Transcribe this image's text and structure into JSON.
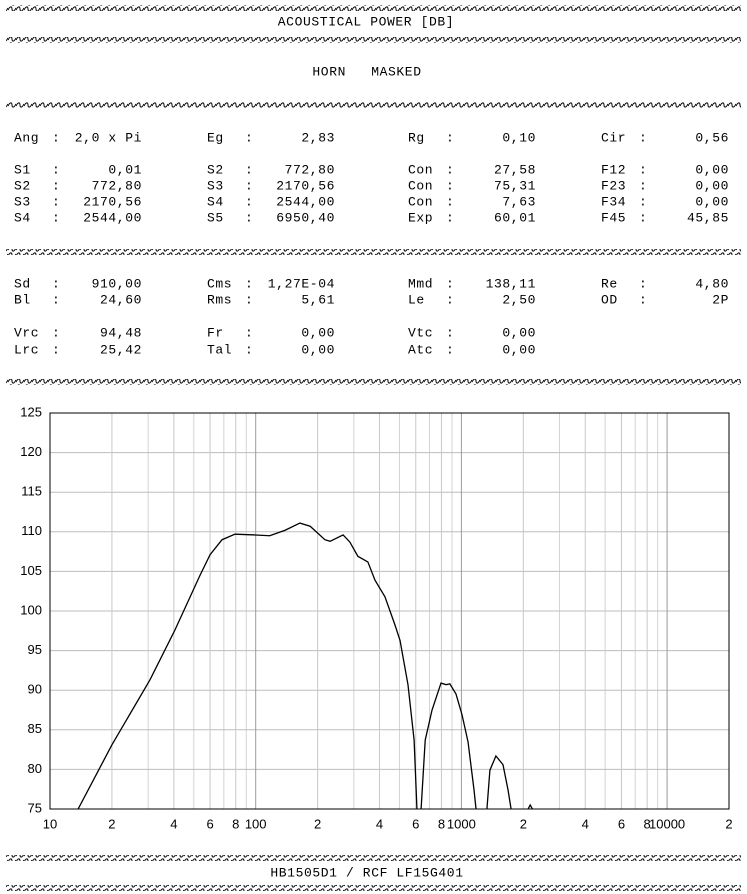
{
  "header": {
    "title": "ACOUSTICAL POWER [DB]",
    "subtitle": "HORN   MASKED"
  },
  "params": {
    "separator": ":",
    "rows": [
      [
        [
          "Ang",
          "2,0 x Pi"
        ],
        [
          "Eg",
          "2,83"
        ],
        [
          "Rg",
          "0,10"
        ],
        [
          "Cir",
          "0,56"
        ]
      ],
      [
        [
          "S1",
          "0,01"
        ],
        [
          "S2",
          "772,80"
        ],
        [
          "Con",
          "27,58"
        ],
        [
          "F12",
          "0,00"
        ]
      ],
      [
        [
          "S2",
          "772,80"
        ],
        [
          "S3",
          "2170,56"
        ],
        [
          "Con",
          "75,31"
        ],
        [
          "F23",
          "0,00"
        ]
      ],
      [
        [
          "S3",
          "2170,56"
        ],
        [
          "S4",
          "2544,00"
        ],
        [
          "Con",
          "7,63"
        ],
        [
          "F34",
          "0,00"
        ]
      ],
      [
        [
          "S4",
          "2544,00"
        ],
        [
          "S5",
          "6950,40"
        ],
        [
          "Exp",
          "60,01"
        ],
        [
          "F45",
          "45,85"
        ]
      ],
      [
        [
          "Sd",
          "910,00"
        ],
        [
          "Cms",
          "1,27E-04"
        ],
        [
          "Mmd",
          "138,11"
        ],
        [
          "Re",
          "4,80"
        ]
      ],
      [
        [
          "Bl",
          "24,60"
        ],
        [
          "Rms",
          "5,61"
        ],
        [
          "Le",
          "2,50"
        ],
        [
          "OD",
          "2P"
        ]
      ],
      [
        [
          "Vrc",
          "94,48"
        ],
        [
          "Fr",
          "0,00"
        ],
        [
          "Vtc",
          "0,00"
        ]
      ],
      [
        [
          "Lrc",
          "25,42"
        ],
        [
          "Tal",
          "0,00"
        ],
        [
          "Atc",
          "0,00"
        ]
      ]
    ]
  },
  "chart_data": {
    "type": "line",
    "log_x": true,
    "grid": true,
    "color": "#000000",
    "x": [
      13.7,
      20,
      30.6,
      40.5,
      53.6,
      60,
      68.6,
      79.3,
      100,
      117,
      139,
      164,
      184,
      217,
      230,
      266,
      287,
      314,
      351,
      380,
      425,
      476,
      503,
      550,
      589,
      608,
      null,
      637,
      667,
      720,
      796,
      842,
      879,
      942,
      1007,
      1077,
      1152,
      1178,
      null,
      1331,
      1376,
      1472,
      1593,
      1686,
      1744,
      null,
      2110,
      2160,
      2215
    ],
    "values": [
      75,
      83.1,
      91.3,
      97.6,
      104.5,
      107.1,
      109.0,
      109.7,
      109.6,
      109.5,
      110.2,
      111.1,
      110.7,
      109.0,
      108.8,
      109.6,
      108.7,
      106.9,
      106.2,
      103.9,
      101.8,
      98.2,
      96.3,
      90.7,
      83.7,
      75,
      null,
      75,
      83.7,
      87.5,
      90.9,
      90.7,
      90.8,
      89.5,
      86.9,
      83.5,
      77.4,
      75,
      null,
      75,
      79.9,
      81.7,
      80.6,
      77.4,
      75,
      null,
      75,
      75.5,
      75
    ],
    "xlim": [
      10,
      20000
    ],
    "ylim": [
      75,
      125
    ],
    "yticks": [
      75,
      80,
      85,
      90,
      95,
      100,
      105,
      110,
      115,
      120,
      125
    ],
    "xticks": [
      10,
      {
        "value": 20,
        "label": "2"
      },
      {
        "value": 40,
        "label": "4"
      },
      {
        "value": 60,
        "label": "6"
      },
      {
        "value": 80,
        "label": "8"
      },
      100,
      {
        "value": 200,
        "label": "2"
      },
      {
        "value": 400,
        "label": "4"
      },
      {
        "value": 600,
        "label": "6"
      },
      {
        "value": 800,
        "label": "8"
      },
      1000,
      {
        "value": 2000,
        "label": "2"
      },
      {
        "value": 4000,
        "label": "4"
      },
      {
        "value": 6000,
        "label": "6"
      },
      {
        "value": 8000,
        "label": "8"
      },
      10000,
      {
        "value": 20000,
        "label": "2"
      }
    ],
    "xminorticks": [
      30,
      50,
      70,
      90,
      300,
      500,
      700,
      900,
      3000,
      5000,
      7000,
      9000
    ]
  },
  "footer": {
    "text": "HB1505D1 / RCF LF15G401"
  }
}
